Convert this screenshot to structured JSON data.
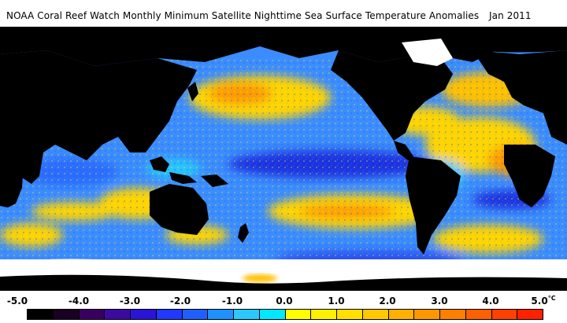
{
  "title": {
    "main": "NOAA Coral Reef Watch Monthly Minimum Satellite Nighttime Sea Surface Temperature Anomalies",
    "date": "Jan 2011"
  },
  "legend": {
    "unit": "°C",
    "ticks": [
      "-5.0",
      "-4.0",
      "-3.0",
      "-2.0",
      "-1.0",
      "0.0",
      "1.0",
      "2.0",
      "3.0",
      "4.0",
      "5.0"
    ],
    "colors": [
      "#000000",
      "#1a0022",
      "#3a0060",
      "#3c0aa0",
      "#2a14d8",
      "#2038ff",
      "#1e60ff",
      "#1e90ff",
      "#2ac8ff",
      "#00e8ff",
      "#ffff00",
      "#fff000",
      "#ffe000",
      "#ffc800",
      "#ffb000",
      "#ff9800",
      "#ff7f00",
      "#ff6000",
      "#ff4000",
      "#ff2000"
    ]
  },
  "map_colors": {
    "ocean_base": "#3b8cff",
    "land": "#000000",
    "ice": "#ffffff",
    "warm": "#ffd700",
    "cold": "#1c2ad8"
  }
}
